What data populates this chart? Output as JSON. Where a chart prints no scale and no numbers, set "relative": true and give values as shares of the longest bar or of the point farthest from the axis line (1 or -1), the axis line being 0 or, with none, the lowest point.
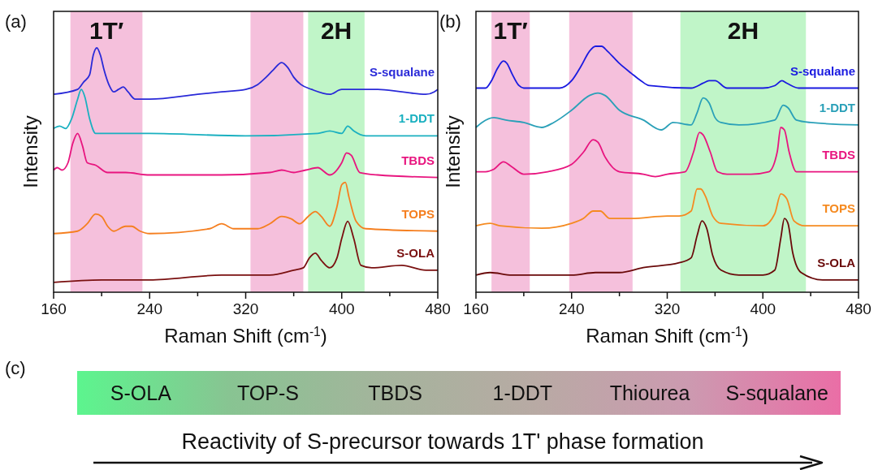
{
  "chart_data": [
    {
      "type": "line",
      "title": "(a)",
      "xlabel": "Raman Shift (cm$^{-1}$)",
      "ylabel": "Intensity",
      "relative": true,
      "xlim": [
        160,
        480
      ],
      "xticks": [
        160,
        {
          "value": 200,
          "label": null
        },
        240,
        {
          "value": 280,
          "label": null
        },
        320,
        {
          "value": 360,
          "label": null
        },
        400,
        {
          "value": 440,
          "label": null
        },
        480
      ],
      "bands": [
        {
          "axis": "x",
          "from": 174,
          "to": 234,
          "label": "1T′",
          "color": "#f5c0dc"
        },
        {
          "axis": "x",
          "from": 324,
          "to": 368,
          "color": "#f5c0dc"
        },
        {
          "axis": "x",
          "from": 372,
          "to": 419,
          "label": "2H",
          "color": "#c0f5c8"
        }
      ],
      "series": [
        {
          "name": "S-squalane",
          "color": "#2a2ad8",
          "x": [
            160,
            180,
            185,
            190,
            193,
            196,
            199,
            202,
            206,
            210,
            214,
            218,
            222,
            228,
            240,
            280,
            300,
            320,
            330,
            337,
            343,
            350,
            355,
            360,
            366,
            375,
            390,
            400,
            410,
            430,
            450,
            470,
            477,
            480
          ],
          "values": [
            0.81,
            0.83,
            0.86,
            0.89,
            0.97,
            1.0,
            0.97,
            0.91,
            0.85,
            0.82,
            0.83,
            0.84,
            0.82,
            0.79,
            0.79,
            0.81,
            0.82,
            0.83,
            0.85,
            0.88,
            0.91,
            0.94,
            0.92,
            0.88,
            0.85,
            0.83,
            0.81,
            0.83,
            0.83,
            0.83,
            0.82,
            0.81,
            0.82,
            0.83
          ]
        },
        {
          "name": "1-DDT",
          "color": "#1ab0c0",
          "x": [
            160,
            165,
            170,
            175,
            180,
            183,
            186,
            190,
            195,
            240,
            320,
            380,
            390,
            400,
            405,
            410,
            420,
            480
          ],
          "values": [
            0.67,
            0.68,
            0.67,
            0.71,
            0.79,
            0.83,
            0.8,
            0.71,
            0.65,
            0.65,
            0.64,
            0.65,
            0.66,
            0.65,
            0.68,
            0.66,
            0.64,
            0.64
          ]
        },
        {
          "name": "TBDS",
          "color": "#e8157f",
          "x": [
            160,
            163,
            167,
            172,
            176,
            180,
            184,
            188,
            195,
            205,
            220,
            240,
            300,
            340,
            350,
            360,
            370,
            380,
            390,
            400,
            404,
            408,
            415,
            430,
            480
          ],
          "values": [
            0.5,
            0.51,
            0.5,
            0.53,
            0.61,
            0.65,
            0.6,
            0.53,
            0.52,
            0.49,
            0.49,
            0.48,
            0.48,
            0.49,
            0.5,
            0.49,
            0.5,
            0.51,
            0.48,
            0.53,
            0.57,
            0.56,
            0.49,
            0.48,
            0.47
          ]
        },
        {
          "name": "TOPS",
          "color": "#f57f20",
          "x": [
            160,
            180,
            188,
            195,
            200,
            205,
            210,
            220,
            225,
            232,
            240,
            290,
            300,
            310,
            330,
            340,
            350,
            358,
            365,
            372,
            378,
            383,
            390,
            396,
            400,
            403,
            406,
            412,
            420,
            480
          ],
          "values": [
            0.24,
            0.25,
            0.28,
            0.32,
            0.31,
            0.27,
            0.25,
            0.27,
            0.27,
            0.25,
            0.24,
            0.26,
            0.28,
            0.26,
            0.26,
            0.28,
            0.31,
            0.3,
            0.28,
            0.31,
            0.33,
            0.31,
            0.27,
            0.35,
            0.44,
            0.45,
            0.39,
            0.29,
            0.26,
            0.25
          ]
        },
        {
          "name": "S-OLA",
          "color": "#7a1010",
          "x": [
            160,
            200,
            240,
            300,
            340,
            360,
            368,
            373,
            378,
            383,
            390,
            396,
            400,
            405,
            410,
            416,
            425,
            450,
            470,
            480
          ],
          "values": [
            0.04,
            0.05,
            0.05,
            0.07,
            0.07,
            0.09,
            0.1,
            0.14,
            0.16,
            0.13,
            0.1,
            0.14,
            0.22,
            0.29,
            0.22,
            0.11,
            0.1,
            0.11,
            0.09,
            0.09
          ]
        }
      ]
    },
    {
      "type": "line",
      "title": "(b)",
      "xlabel": "Raman Shift (cm$^{-1}$)",
      "ylabel": "Intensity",
      "relative": true,
      "xlim": [
        160,
        480
      ],
      "xticks": [
        160,
        {
          "value": 200,
          "label": null
        },
        240,
        {
          "value": 280,
          "label": null
        },
        320,
        {
          "value": 360,
          "label": null
        },
        400,
        {
          "value": 440,
          "label": null
        },
        480
      ],
      "bands": [
        {
          "axis": "x",
          "from": 173,
          "to": 205,
          "label": "1T′",
          "color": "#f5c0dc"
        },
        {
          "axis": "x",
          "from": 238,
          "to": 291,
          "color": "#f5c0dc"
        },
        {
          "axis": "x",
          "from": 331,
          "to": 436,
          "label": "2H",
          "color": "#c0f5c8"
        }
      ],
      "series": [
        {
          "name": "S-squalane",
          "color": "#1a1ae0",
          "x": [
            160,
            168,
            173,
            178,
            183,
            186,
            190,
            196,
            200,
            230,
            240,
            248,
            255,
            260,
            265,
            270,
            280,
            290,
            298,
            305,
            340,
            350,
            355,
            360,
            370,
            400,
            410,
            416,
            420,
            430,
            480
          ],
          "values": [
            0.83,
            0.83,
            0.86,
            0.91,
            0.94,
            0.93,
            0.89,
            0.84,
            0.83,
            0.83,
            0.86,
            0.92,
            0.98,
            1.0,
            1.0,
            0.98,
            0.93,
            0.89,
            0.86,
            0.84,
            0.83,
            0.85,
            0.86,
            0.86,
            0.83,
            0.83,
            0.84,
            0.86,
            0.85,
            0.83,
            0.83
          ]
        },
        {
          "name": "1-DDT",
          "color": "#2aa0b8",
          "x": [
            160,
            165,
            175,
            185,
            200,
            215,
            225,
            240,
            255,
            262,
            268,
            280,
            300,
            315,
            325,
            340,
            345,
            350,
            355,
            360,
            365,
            380,
            410,
            417,
            421,
            428,
            440,
            480
          ],
          "values": [
            0.67,
            0.69,
            0.71,
            0.7,
            0.69,
            0.67,
            0.69,
            0.74,
            0.8,
            0.81,
            0.8,
            0.74,
            0.7,
            0.66,
            0.69,
            0.68,
            0.73,
            0.79,
            0.77,
            0.71,
            0.69,
            0.68,
            0.7,
            0.76,
            0.75,
            0.7,
            0.69,
            0.68
          ]
        },
        {
          "name": "TBDS",
          "color": "#e8157f",
          "x": [
            160,
            168,
            175,
            183,
            190,
            200,
            220,
            240,
            250,
            258,
            262,
            268,
            280,
            300,
            310,
            320,
            335,
            342,
            347,
            350,
            356,
            362,
            370,
            390,
            405,
            412,
            415,
            418,
            422,
            428,
            440,
            480
          ],
          "values": [
            0.49,
            0.49,
            0.5,
            0.53,
            0.51,
            0.48,
            0.49,
            0.52,
            0.57,
            0.62,
            0.61,
            0.55,
            0.49,
            0.48,
            0.47,
            0.48,
            0.49,
            0.57,
            0.65,
            0.64,
            0.57,
            0.49,
            0.48,
            0.48,
            0.49,
            0.57,
            0.67,
            0.66,
            0.57,
            0.49,
            0.49,
            0.49
          ]
        },
        {
          "name": "TOPS",
          "color": "#f58a20",
          "x": [
            160,
            172,
            180,
            215,
            240,
            250,
            258,
            264,
            272,
            290,
            320,
            330,
            340,
            345,
            348,
            352,
            358,
            365,
            400,
            410,
            415,
            420,
            426,
            435,
            480
          ],
          "values": [
            0.27,
            0.28,
            0.27,
            0.26,
            0.28,
            0.3,
            0.33,
            0.33,
            0.3,
            0.3,
            0.31,
            0.31,
            0.33,
            0.42,
            0.42,
            0.39,
            0.31,
            0.28,
            0.27,
            0.32,
            0.4,
            0.38,
            0.29,
            0.27,
            0.27
          ]
        },
        {
          "name": "S-OLA",
          "color": "#6a0a0a",
          "x": [
            160,
            172,
            190,
            240,
            260,
            280,
            300,
            330,
            340,
            345,
            349,
            353,
            358,
            365,
            380,
            400,
            410,
            415,
            418,
            421,
            425,
            432,
            450,
            475,
            480
          ],
          "values": [
            0.07,
            0.08,
            0.07,
            0.07,
            0.08,
            0.08,
            0.1,
            0.12,
            0.14,
            0.23,
            0.29,
            0.26,
            0.15,
            0.09,
            0.07,
            0.07,
            0.09,
            0.22,
            0.3,
            0.28,
            0.16,
            0.08,
            0.05,
            0.05,
            0.05
          ]
        }
      ]
    },
    {
      "type": "other",
      "title": "(c)",
      "categories": [
        "S-OLA",
        "TOP-S",
        "TBDS",
        "1-DDT",
        "Thiourea",
        "S-squalane"
      ],
      "colors": [
        "#5cf58e",
        "#88c492",
        "#a4b49c",
        "#b8aaa4",
        "#cc9ab0",
        "#ea6ea6"
      ],
      "xlabel": "Reactivity of S-precursor towards 1T' phase formation"
    }
  ]
}
